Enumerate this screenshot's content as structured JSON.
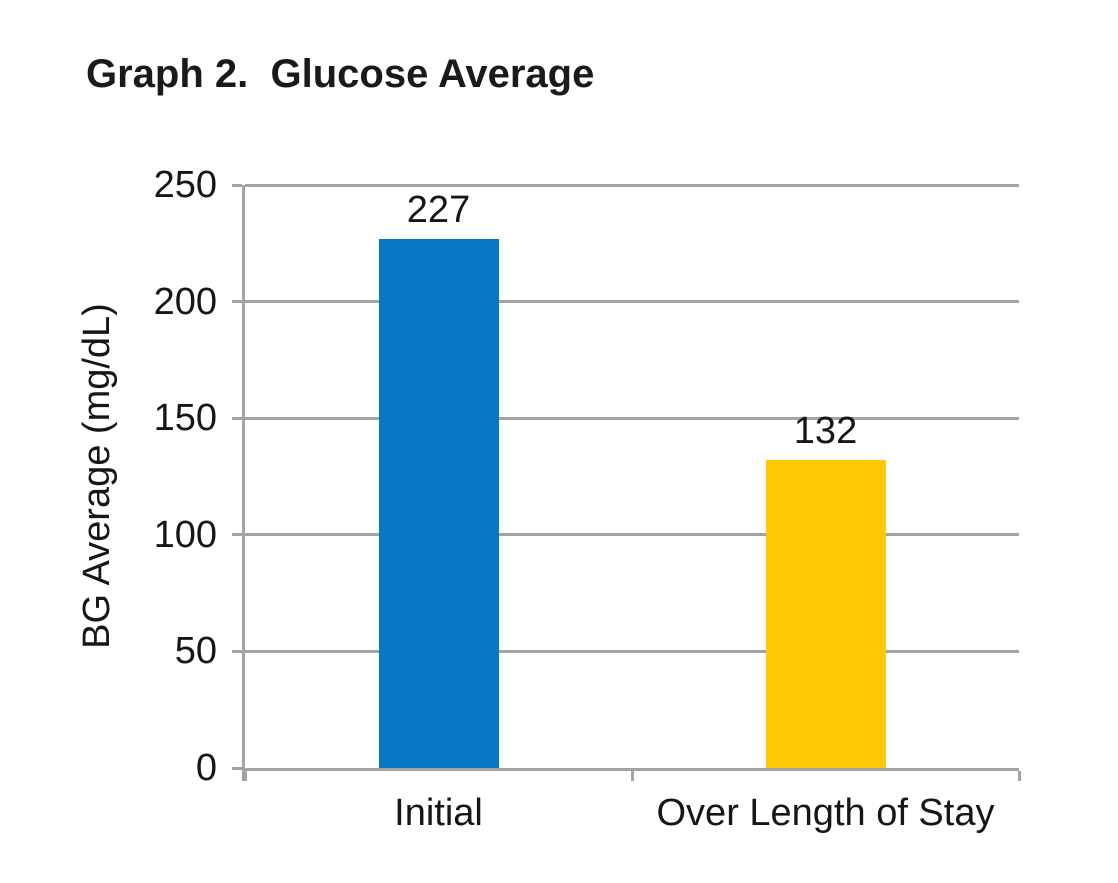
{
  "chart_data": {
    "type": "bar",
    "title": "Graph 2.  Glucose Average",
    "ylabel": "BG Average (mg/dL)",
    "xlabel": "",
    "categories": [
      "Initial",
      "Over Length of Stay"
    ],
    "values": [
      227,
      132
    ],
    "bar_colors": [
      "#0878C5",
      "#FFC805"
    ],
    "value_labels": [
      "227",
      "132"
    ],
    "yticks": [
      0,
      50,
      100,
      150,
      200,
      250
    ],
    "ylim": [
      0,
      250
    ],
    "grid": "horizontal",
    "legend": "none",
    "colors": {
      "axis": "#A3A3A3",
      "gridline": "#A3A3A3",
      "text": "#161616",
      "title_text": "#1A1A1A",
      "background": "#FFFFFF"
    }
  }
}
